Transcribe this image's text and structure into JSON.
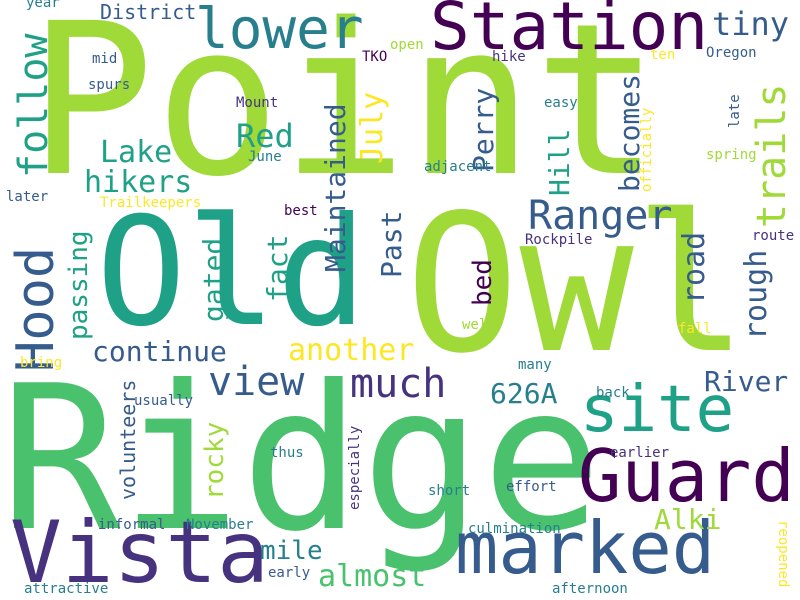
{
  "colors": {
    "background": "#ffffff",
    "lime": "#a0da39",
    "green": "#4ac16d",
    "teal": "#1fa187",
    "cyan": "#277f8e",
    "blue": "#365c8d",
    "indigo": "#46327e",
    "purple": "#440154",
    "yellow": "#fde725"
  },
  "words": {
    "point": "Point",
    "old": "Old",
    "owl": "Owl",
    "ridge": "Ridge",
    "station": "Station",
    "vista": "Vista",
    "marked": "marked",
    "guard": "Guard",
    "site": "site",
    "lower": "lower",
    "hood": "Hood",
    "follow": "follow",
    "view": "view",
    "much": "much",
    "ranger": "Ranger",
    "trails": "trails",
    "tiny": "tiny",
    "becomes": "becomes",
    "perry": "Perry",
    "hill": "Hill",
    "july": "July",
    "maintained": "Maintained",
    "red": "Red",
    "lake": "Lake",
    "hikers": "hikers",
    "continue": "continue",
    "another": "another",
    "past": "Past",
    "fact": "fact",
    "gated": "gated",
    "passing": "passing",
    "bed": "bed",
    "road": "road",
    "rough": "rough",
    "n626a": "626A",
    "river": "River",
    "alki": "Alki",
    "mile": "mile",
    "almost": "almost",
    "rocky": "rocky",
    "volunteers": "volunteers",
    "district": "District",
    "year": "year",
    "mid": "mid",
    "spurs": "spurs",
    "mount": "Mount",
    "june": "June",
    "later": "later",
    "trailkeepers": "Trailkeepers",
    "best": "best",
    "rockpile": "Rockpile",
    "route": "route",
    "tko": "TKO",
    "open": "open",
    "hike": "hike",
    "ten": "ten",
    "oregon": "Oregon",
    "easy": "easy",
    "officially": "officially",
    "late": "late",
    "spring": "spring",
    "adjacent": "adjacent",
    "well": "well",
    "fall": "fall",
    "bring": "bring",
    "many": "many",
    "usually": "usually",
    "back": "back",
    "thus": "thus",
    "especially": "especially",
    "earlier": "earlier",
    "short": "short",
    "effort": "effort",
    "informal": "informal",
    "november": "November",
    "culmination": "culmination",
    "early": "early",
    "attractive": "attractive",
    "afternoon": "afternoon",
    "reopened": "reopened"
  }
}
